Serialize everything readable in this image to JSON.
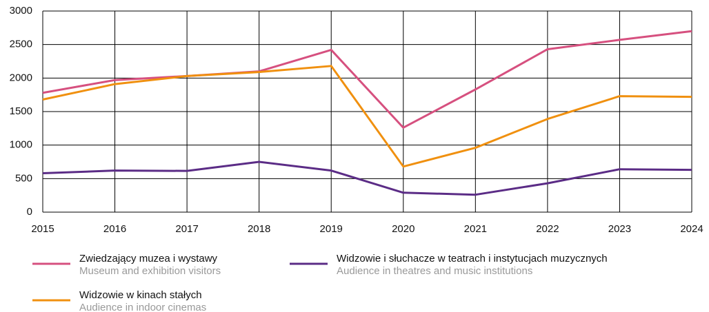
{
  "chart_data": {
    "type": "line",
    "x": [
      2015,
      2016,
      2017,
      2018,
      2019,
      2020,
      2021,
      2022,
      2023,
      2024
    ],
    "xlim": [
      2015,
      2024
    ],
    "xticks": [
      2015,
      2016,
      2017,
      2018,
      2019,
      2020,
      2021,
      2022,
      2023,
      2024
    ],
    "ylim": [
      0,
      3000
    ],
    "yticks": [
      0,
      500,
      1000,
      1500,
      2000,
      2500,
      3000
    ],
    "grid": true,
    "series": [
      {
        "name": "Zwiedzający muzea i wystawy",
        "name_en": "Museum and exhibition visitors",
        "color": "#d6507f",
        "values": [
          1780,
          1970,
          2030,
          2100,
          2420,
          1260,
          1830,
          2430,
          2570,
          2700
        ]
      },
      {
        "name": "Widzowie i słuchacze w teatrach i instytucjach muzycznych",
        "name_en": "Audience in theatres and music institutions",
        "color": "#5b2c86",
        "values": [
          580,
          620,
          615,
          750,
          620,
          290,
          260,
          430,
          640,
          630
        ]
      },
      {
        "name": "Widzowie w kinach stałych",
        "name_en": "Audience in indoor cinemas",
        "color": "#f0900f",
        "values": [
          1680,
          1910,
          2030,
          2090,
          2180,
          680,
          960,
          1390,
          1730,
          1720
        ]
      }
    ]
  }
}
